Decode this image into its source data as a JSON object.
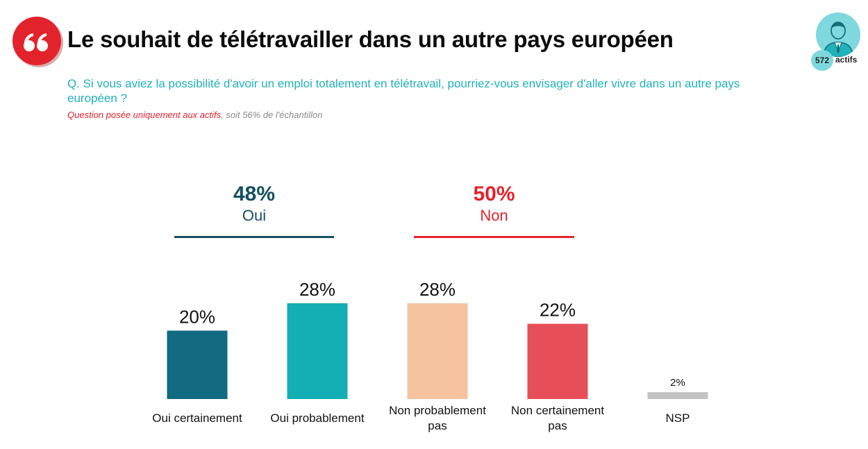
{
  "header": {
    "title": "Le souhait de télétravailler dans un autre pays européen",
    "question": "Q. Si vous aviez la possibilité d'avoir un emploi totalement en télétravail, pourriez-vous envisager d'aller vivre dans un autre pays européen ?",
    "note_highlight": "Question posée uniquement aux actifs",
    "note_rest": ", soit 56% de l'échantillon",
    "quote_icon": "quote-icon",
    "respondent_icon": "person-icon",
    "respondent_count": "572",
    "respondent_label": "actifs"
  },
  "groups": [
    {
      "pct": "48%",
      "label": "Oui",
      "color": "#144f62"
    },
    {
      "pct": "50%",
      "label": "Non",
      "color": "#e3232c"
    }
  ],
  "chart_data": {
    "type": "bar",
    "categories": [
      [
        "Oui certainement"
      ],
      [
        "Oui probablement"
      ],
      [
        "Non probablement",
        "pas"
      ],
      [
        "Non certainement",
        "pas"
      ],
      [
        "NSP"
      ]
    ],
    "values": [
      20,
      28,
      28,
      22,
      2
    ],
    "value_labels": [
      "20%",
      "28%",
      "28%",
      "22%",
      "2%"
    ],
    "colors": [
      "#126b80",
      "#14aeb5",
      "#f6c3a1",
      "#e64f59",
      "#c2c2c2"
    ],
    "ylim": [
      0,
      28
    ],
    "grid": false,
    "legend": "none"
  }
}
